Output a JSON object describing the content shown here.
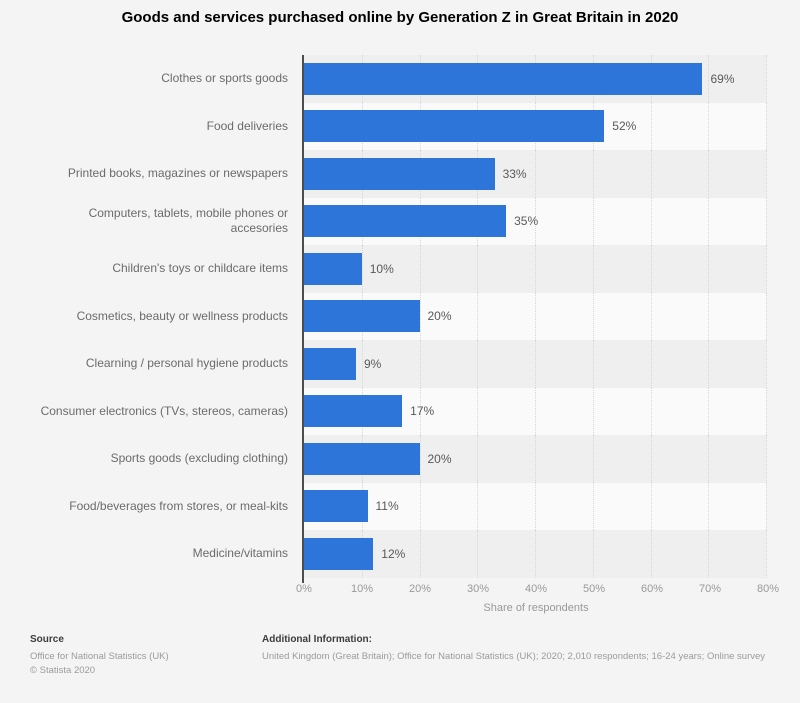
{
  "title": "Goods and services purchased online by Generation Z in Great Britain in 2020",
  "chart_data": {
    "type": "bar",
    "orientation": "horizontal",
    "title": "Goods and services purchased online by Generation Z in Great Britain in 2020",
    "categories": [
      "Clothes or sports goods",
      "Food deliveries",
      "Printed books, magazines or newspapers",
      "Computers, tablets, mobile phones or\naccesories",
      "Children's toys or childcare items",
      "Cosmetics, beauty or wellness products",
      "Clearning / personal hygiene products",
      "Consumer electronics (TVs, stereos, cameras)",
      "Sports goods (excluding clothing)",
      "Food/beverages from stores, or meal-kits",
      "Medicine/vitamins"
    ],
    "values": [
      69,
      52,
      33,
      35,
      10,
      20,
      9,
      17,
      20,
      11,
      12
    ],
    "value_labels": [
      "69%",
      "52%",
      "33%",
      "35%",
      "10%",
      "20%",
      "9%",
      "17%",
      "20%",
      "11%",
      "12%"
    ],
    "xlabel": "Share of respondents",
    "x_ticks": [
      "0%",
      "10%",
      "20%",
      "30%",
      "40%",
      "50%",
      "60%",
      "70%",
      "80%"
    ],
    "xlim": [
      0,
      80
    ],
    "grid": "vertical-dotted",
    "legend": "none",
    "bar_color": "#2d75d9"
  },
  "footer": {
    "source_heading": "Source",
    "source_line1": "Office for National Statistics (UK)",
    "source_line2": "© Statista 2020",
    "additional_heading": "Additional Information:",
    "additional_text": "United Kingdom (Great Britain); Office for National Statistics (UK); 2020; 2,010 respondents; 16-24 years; Online survey"
  }
}
